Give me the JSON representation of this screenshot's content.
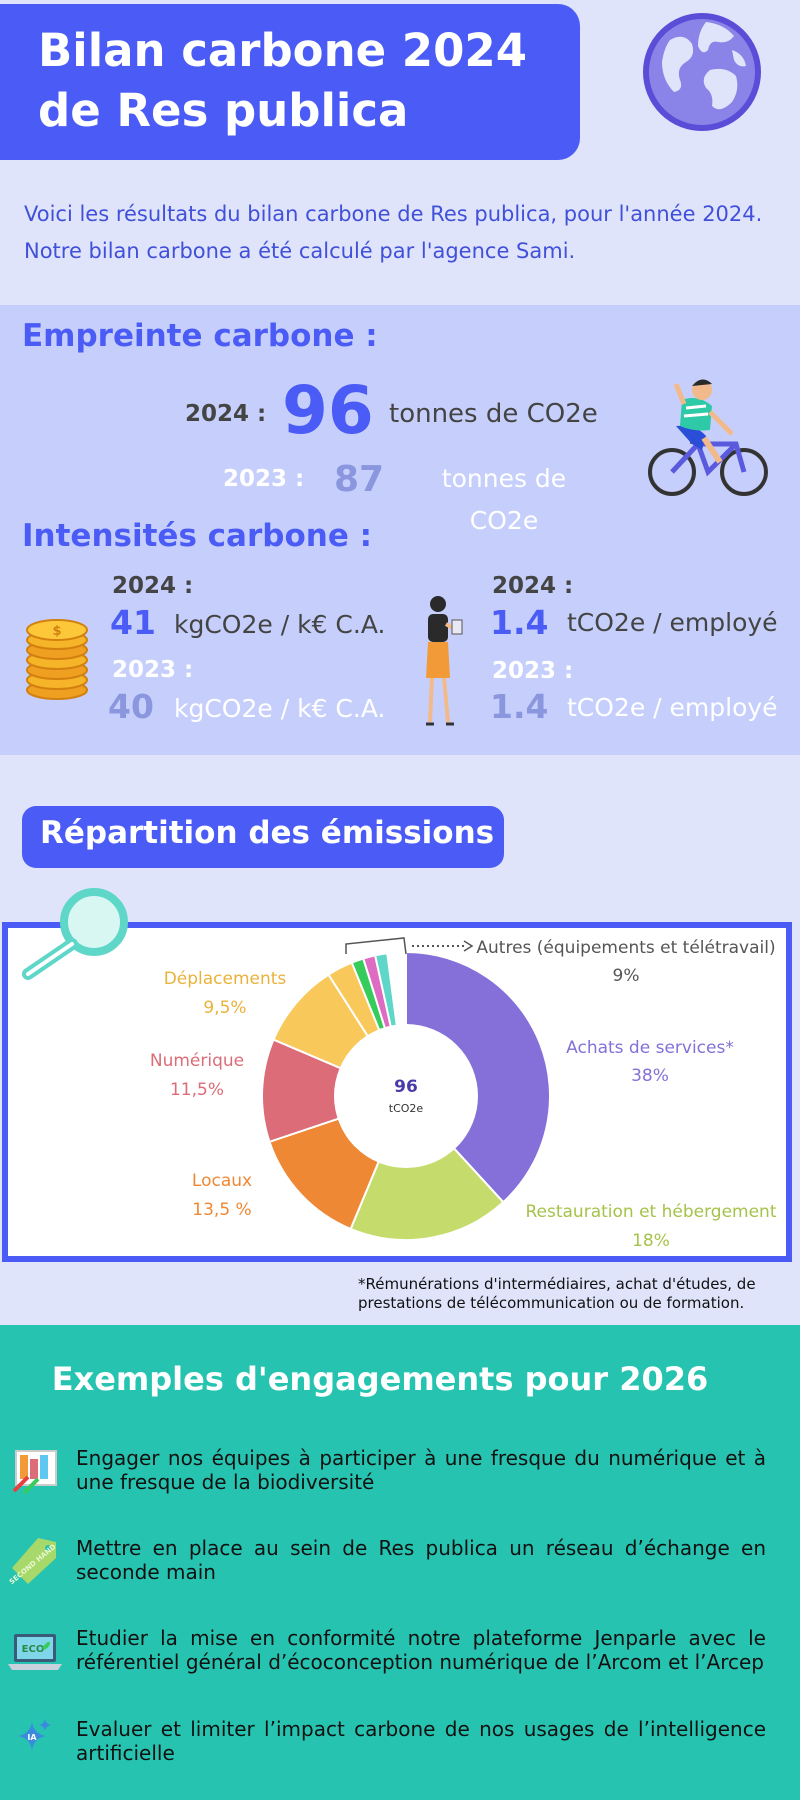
{
  "header": {
    "title_line1": "Bilan carbone 2024",
    "title_line2": "de Res publica",
    "globe_icon": "globe-icon"
  },
  "intro": {
    "line1": "Voici les résultats du bilan carbone de Res publica, pour l'année 2024.",
    "line2": "Notre bilan carbone a été calculé par l'agence Sami."
  },
  "empreinte": {
    "heading": "Empreinte carbone :",
    "y2024_label": "2024 :",
    "y2024_value": "96",
    "y2024_unit": "tonnes de CO2e",
    "y2023_label": "2023 :",
    "y2023_value": "87",
    "y2023_unit_line1": "tonnes de",
    "y2023_unit_line2": "CO2e"
  },
  "intensites": {
    "heading": "Intensités carbone :",
    "ca": {
      "y2024_label": "2024 :",
      "y2024_value": "41",
      "y2024_unit": "kgCO2e / k€ C.A.",
      "y2023_label": "2023 :",
      "y2023_value": "40",
      "y2023_unit": "kgCO2e / k€ C.A."
    },
    "employe": {
      "y2024_label": "2024 :",
      "y2024_value": "1.4",
      "y2024_unit": "tCO2e / employé",
      "y2023_label": "2023 :",
      "y2023_value": "1.4",
      "y2023_unit": "tCO2e / employé"
    }
  },
  "repartition": {
    "heading": "Répartition des émissions",
    "footnote_line1": "*Rémunérations d'intermédiaires, achat d'études, de",
    "footnote_line2": "prestations de télécommunication ou de formation."
  },
  "chart_data": {
    "type": "pie",
    "center_value": "96",
    "center_unit": "tCO2e",
    "slices": [
      {
        "label": "Achats de services*",
        "value_text": "38%",
        "value": 38,
        "color": "#8470d8"
      },
      {
        "label": "Restauration et hébergement",
        "value_text": "18%",
        "value": 18,
        "color": "#c5dc6c"
      },
      {
        "label": "Locaux",
        "value_text": "13,5 %",
        "value": 13.5,
        "color": "#ee8834"
      },
      {
        "label": "Numérique",
        "value_text": "11,5%",
        "value": 11.5,
        "color": "#dc6c78"
      },
      {
        "label": "Déplacements",
        "value_text": "9,5%",
        "value": 9.5,
        "color": "#f8c85a"
      },
      {
        "label": "Autres (équipements et télétravail)",
        "value_text": "9%",
        "value": 9,
        "color": "#9aa0a8",
        "sub_colors": [
          "#35cc5c",
          "#dd6cc2",
          "#5ed6c8"
        ]
      }
    ]
  },
  "engagements": {
    "heading": "Exemples d'engagements pour 2026",
    "items": [
      {
        "icon": "fresque-icon",
        "text": "Engager nos équipes à participer à une fresque du numérique et à une fresque de la biodiversité"
      },
      {
        "icon": "second-hand-tag-icon",
        "icon_text": "SECOND HAND",
        "text": "Mettre en place au sein de Res publica un réseau d’échange en seconde main"
      },
      {
        "icon": "eco-laptop-icon",
        "icon_text": "ECO",
        "text": "Etudier la mise en conformité notre plateforme Jenparle avec le référentiel général d’écoconception numérique de l’Arcom et l’Arcep"
      },
      {
        "icon": "ia-sparkle-icon",
        "icon_text": "IA",
        "text": "Evaluer et limiter l’impact carbone de nos usages de l’intelligence artificielle"
      }
    ]
  }
}
